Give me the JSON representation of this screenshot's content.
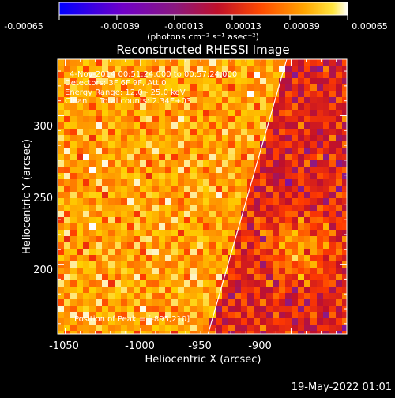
{
  "colorbar": {
    "tick_labels": [
      "-0.00065",
      "-0.00039",
      "-0.00013",
      "0.00013",
      "0.00039",
      "0.00065"
    ],
    "units": "(photons cm⁻² s⁻¹ asec⁻²)"
  },
  "title": "Reconstructed RHESSI Image",
  "info": {
    "time_range": "4-Nov-2014 00:51:24.000 to 00:57:24.000",
    "detectors": "Detectors: 3F 6F 9F, Att 0",
    "energy_range": "Energy Range: 12.0 - 25.0 keV",
    "algorithm": "Clean",
    "total_counts": "Total counts: 2.34E+03",
    "peak": "Position of Peak = [-895,210]"
  },
  "x_axis": {
    "label": "Heliocentric X (arcsec)",
    "ticks": [
      "-1050",
      "-1000",
      "-950",
      "-900"
    ]
  },
  "y_axis": {
    "label": "Heliocentric Y (arcsec)",
    "ticks": [
      "300",
      "250",
      "200"
    ]
  },
  "footer": {
    "timestamp": "19-May-2022 01:01"
  },
  "colors": {
    "background": "#000000",
    "colormap": [
      "#0000ff",
      "#6a00c8",
      "#8a1a8a",
      "#c0102a",
      "#ff3a00",
      "#ff8c00",
      "#ffd000",
      "#ffffff"
    ],
    "limb_line": "#ffffff"
  },
  "image": {
    "peak_xy": [
      -895,
      210
    ],
    "limb_line_arcsec": [
      [
        -956,
        150
      ],
      [
        -908,
        320
      ]
    ]
  }
}
